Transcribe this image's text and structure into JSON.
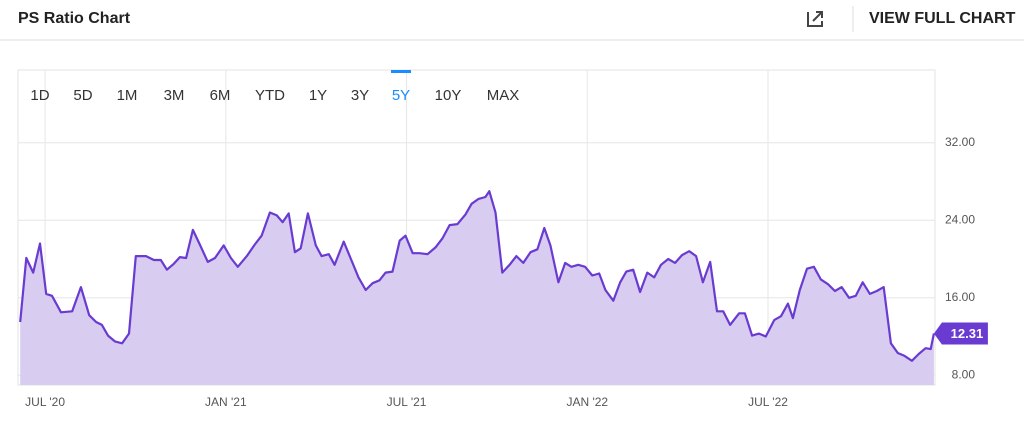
{
  "header": {
    "title": "PS Ratio Chart",
    "link": "VIEW FULL CHART"
  },
  "ranges": [
    "1D",
    "5D",
    "1M",
    "3M",
    "6M",
    "YTD",
    "1Y",
    "3Y",
    "5Y",
    "10Y",
    "MAX"
  ],
  "selected_range": "5Y",
  "chart_data": {
    "type": "area",
    "xlim": [
      2020.425,
      2022.962
    ],
    "ylim": [
      7,
      39.5
    ],
    "xticks": [
      {
        "value": 2020.5,
        "label": "JUL '20"
      },
      {
        "value": 2021.0,
        "label": "JAN '21"
      },
      {
        "value": 2021.5,
        "label": "JUL '21"
      },
      {
        "value": 2022.0,
        "label": "JAN '22"
      },
      {
        "value": 2022.5,
        "label": "JUL '22"
      }
    ],
    "yticks": [
      {
        "value": 8,
        "label": "8.00"
      },
      {
        "value": 16,
        "label": "16.00"
      },
      {
        "value": 24,
        "label": "24.00"
      },
      {
        "value": 32,
        "label": "32.00"
      }
    ],
    "grid": true,
    "series": [
      {
        "color": "#6a3bd1",
        "fill": "#d8cdf1",
        "x": [
          2020.431,
          2020.448,
          2020.467,
          2020.486,
          2020.503,
          2020.519,
          2020.544,
          2020.575,
          2020.599,
          2020.622,
          2020.641,
          2020.657,
          2020.674,
          2020.693,
          2020.713,
          2020.732,
          2020.751,
          2020.779,
          2020.801,
          2020.82,
          2020.837,
          2020.856,
          2020.873,
          2020.89,
          2020.909,
          2020.928,
          2020.95,
          2020.97,
          2020.994,
          2021.014,
          2021.033,
          2021.058,
          2021.08,
          2021.099,
          2021.122,
          2021.141,
          2021.157,
          2021.174,
          2021.191,
          2021.207,
          2021.227,
          2021.249,
          2021.265,
          2021.285,
          2021.301,
          2021.326,
          2021.345,
          2021.367,
          2021.387,
          2021.406,
          2021.425,
          2021.442,
          2021.461,
          2021.481,
          2021.497,
          2021.517,
          2021.536,
          2021.558,
          2021.58,
          2021.599,
          2021.619,
          2021.641,
          2021.663,
          2021.68,
          2021.699,
          2021.718,
          2021.729,
          2021.746,
          2021.765,
          2021.785,
          2021.804,
          2021.823,
          2021.843,
          2021.862,
          2021.881,
          2021.898,
          2021.92,
          2021.939,
          2021.956,
          2021.975,
          2021.994,
          2022.014,
          2022.033,
          2022.05,
          2022.072,
          2022.091,
          2022.108,
          2022.127,
          2022.146,
          2022.166,
          2022.185,
          2022.204,
          2022.224,
          2022.243,
          2022.262,
          2022.282,
          2022.301,
          2022.32,
          2022.34,
          2022.359,
          2022.376,
          2022.395,
          2022.42,
          2022.436,
          2022.456,
          2022.475,
          2022.494,
          2022.517,
          2022.536,
          2022.555,
          2022.569,
          2022.588,
          2022.608,
          2022.627,
          2022.646,
          2022.666,
          2022.685,
          2022.704,
          2022.724,
          2022.743,
          2022.762,
          2022.782,
          2022.801,
          2022.82,
          2022.84,
          2022.859,
          2022.878,
          2022.898,
          2022.917,
          2022.936,
          2022.95,
          2022.959
        ],
        "values": [
          13.5,
          20.1,
          18.6,
          21.6,
          16.4,
          16.2,
          14.5,
          14.6,
          17.1,
          14.2,
          13.5,
          13.2,
          12.1,
          11.5,
          11.3,
          12.3,
          20.3,
          20.3,
          19.9,
          19.9,
          18.9,
          19.5,
          20.2,
          20.1,
          23.0,
          21.5,
          19.7,
          20.1,
          21.4,
          20.1,
          19.2,
          20.3,
          21.5,
          22.4,
          24.8,
          24.5,
          23.8,
          24.7,
          20.7,
          21.1,
          24.7,
          21.4,
          20.3,
          20.5,
          19.4,
          21.8,
          20.1,
          18.1,
          16.8,
          17.5,
          17.8,
          18.6,
          18.7,
          21.9,
          22.4,
          20.6,
          20.6,
          20.5,
          21.2,
          22.1,
          23.5,
          23.6,
          24.6,
          25.7,
          26.2,
          26.4,
          27.0,
          24.8,
          18.6,
          19.4,
          20.3,
          19.6,
          20.7,
          21.0,
          23.2,
          21.4,
          17.6,
          19.6,
          19.2,
          19.4,
          19.2,
          18.3,
          18.5,
          16.8,
          15.7,
          17.6,
          18.7,
          18.9,
          16.6,
          18.6,
          18.1,
          19.4,
          20.0,
          19.6,
          20.4,
          20.8,
          20.3,
          17.6,
          19.7,
          14.6,
          14.6,
          13.2,
          14.4,
          14.4,
          12.1,
          12.3,
          12.0,
          13.7,
          14.1,
          15.4,
          13.9,
          16.8,
          19.0,
          19.2,
          17.9,
          17.4,
          16.7,
          17.1,
          16.0,
          16.2,
          17.6,
          16.4,
          16.7,
          17.1,
          11.3,
          10.3,
          10.0,
          9.5,
          10.2,
          10.8,
          10.7,
          12.31
        ]
      }
    ]
  }
}
